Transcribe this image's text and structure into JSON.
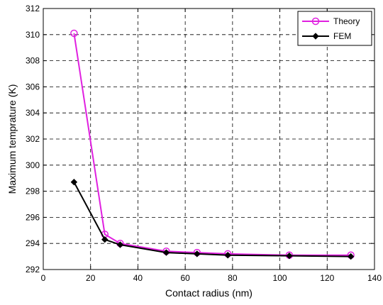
{
  "chart_data": {
    "type": "line",
    "xlabel": "Contact radius (nm)",
    "ylabel": "Maximum temprature (K)",
    "xlim": [
      0,
      140
    ],
    "ylim": [
      292,
      312
    ],
    "xticks": [
      0,
      20,
      40,
      60,
      80,
      100,
      120,
      140
    ],
    "yticks": [
      292,
      294,
      296,
      298,
      300,
      302,
      304,
      306,
      308,
      310,
      312
    ],
    "grid": true,
    "grid_style": "dashed",
    "legend_position": "top-right",
    "series": [
      {
        "name": "Theory",
        "color": "#e020e0",
        "marker": "circle-open",
        "x": [
          13,
          26,
          32.5,
          52,
          65,
          78,
          104,
          130
        ],
        "y": [
          310.1,
          294.7,
          294.0,
          293.4,
          293.3,
          293.2,
          293.1,
          293.1
        ]
      },
      {
        "name": "FEM",
        "color": "#000000",
        "marker": "diamond-filled",
        "x": [
          13,
          26,
          32.5,
          52,
          65,
          78,
          104,
          130
        ],
        "y": [
          298.7,
          294.3,
          293.9,
          293.3,
          293.2,
          293.1,
          293.05,
          293.0
        ]
      }
    ]
  }
}
